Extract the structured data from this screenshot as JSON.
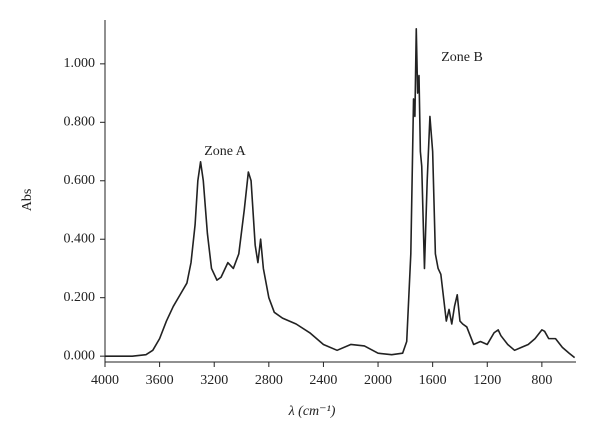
{
  "chart_data": {
    "type": "line",
    "xlabel": "λ (cm⁻¹)",
    "ylabel": "Abs",
    "annotations": [
      "Zone A",
      "Zone B"
    ],
    "color": "#222222",
    "xlim": [
      4000,
      550
    ],
    "ylim": [
      -0.02,
      1.15
    ],
    "xticks": [
      4000,
      3600,
      3200,
      2800,
      2400,
      2000,
      1600,
      1200,
      800
    ],
    "yticks": [
      {
        "value": 0,
        "label": "0.000"
      },
      {
        "value": 0.2,
        "label": "0.200"
      },
      {
        "value": 0.4,
        "label": "0.400"
      },
      {
        "value": 0.6,
        "label": "0.600"
      },
      {
        "value": 0.8,
        "label": "0.800"
      },
      {
        "value": 1.0,
        "label": "1.000"
      }
    ],
    "x": [
      4000,
      3800,
      3700,
      3650,
      3600,
      3550,
      3500,
      3450,
      3400,
      3370,
      3340,
      3320,
      3300,
      3280,
      3250,
      3220,
      3180,
      3150,
      3100,
      3060,
      3020,
      2980,
      2950,
      2930,
      2900,
      2880,
      2860,
      2840,
      2800,
      2760,
      2700,
      2600,
      2500,
      2400,
      2300,
      2200,
      2100,
      2000,
      1900,
      1820,
      1790,
      1760,
      1740,
      1730,
      1720,
      1710,
      1700,
      1690,
      1680,
      1660,
      1640,
      1620,
      1600,
      1580,
      1560,
      1540,
      1520,
      1500,
      1480,
      1460,
      1440,
      1420,
      1400,
      1380,
      1350,
      1300,
      1250,
      1200,
      1150,
      1120,
      1100,
      1050,
      1000,
      950,
      900,
      850,
      800,
      780,
      750,
      700,
      650,
      600,
      560
    ],
    "values": [
      0.0,
      0.0,
      0.005,
      0.02,
      0.06,
      0.12,
      0.17,
      0.21,
      0.25,
      0.32,
      0.45,
      0.6,
      0.665,
      0.6,
      0.42,
      0.3,
      0.26,
      0.27,
      0.32,
      0.3,
      0.35,
      0.5,
      0.63,
      0.6,
      0.38,
      0.32,
      0.4,
      0.3,
      0.2,
      0.15,
      0.13,
      0.11,
      0.08,
      0.04,
      0.02,
      0.04,
      0.035,
      0.01,
      0.005,
      0.01,
      0.05,
      0.35,
      0.88,
      0.82,
      1.12,
      0.9,
      0.96,
      0.7,
      0.65,
      0.3,
      0.6,
      0.82,
      0.7,
      0.35,
      0.3,
      0.28,
      0.2,
      0.12,
      0.16,
      0.11,
      0.17,
      0.21,
      0.12,
      0.11,
      0.1,
      0.04,
      0.05,
      0.04,
      0.08,
      0.09,
      0.07,
      0.04,
      0.02,
      0.03,
      0.04,
      0.06,
      0.09,
      0.085,
      0.06,
      0.06,
      0.03,
      0.01,
      -0.005
    ]
  }
}
